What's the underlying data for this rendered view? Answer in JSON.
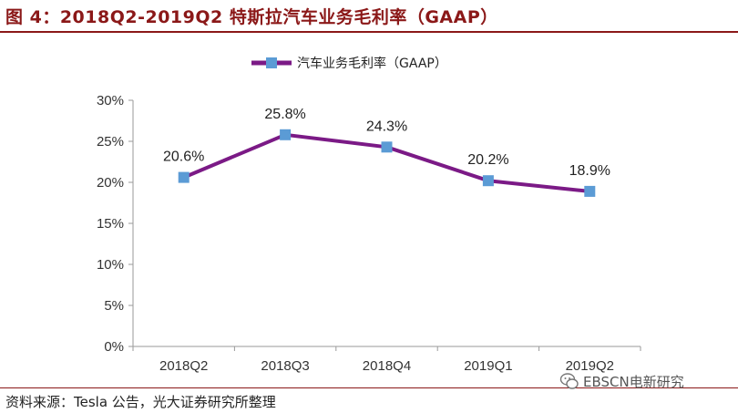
{
  "figure": {
    "title": "图 4：2018Q2-2019Q2 特斯拉汽车业务毛利率（GAAP）",
    "source": "资料来源：Tesla 公告，光大证券研究所整理",
    "watermark": "EBSCN电新研究"
  },
  "colors": {
    "title": "#8b1818",
    "line": "#7b1a86",
    "marker": "#5b9bd5",
    "axis": "#9a9a9a"
  },
  "chart_data": {
    "type": "line",
    "title": "",
    "xlabel": "",
    "ylabel": "",
    "categories": [
      "2018Q2",
      "2018Q3",
      "2018Q4",
      "2019Q1",
      "2019Q2"
    ],
    "series": [
      {
        "name": "汽车业务毛利率（GAAP）",
        "values": [
          20.6,
          25.8,
          24.3,
          20.2,
          18.9
        ],
        "labels": [
          "20.6%",
          "25.8%",
          "24.3%",
          "20.2%",
          "18.9%"
        ]
      }
    ],
    "ylim": [
      0,
      30
    ],
    "yticks": [
      0,
      5,
      10,
      15,
      20,
      25,
      30
    ],
    "ytick_labels": [
      "0%",
      "5%",
      "10%",
      "15%",
      "20%",
      "25%",
      "30%"
    ],
    "grid": false,
    "legend": "top-center"
  }
}
